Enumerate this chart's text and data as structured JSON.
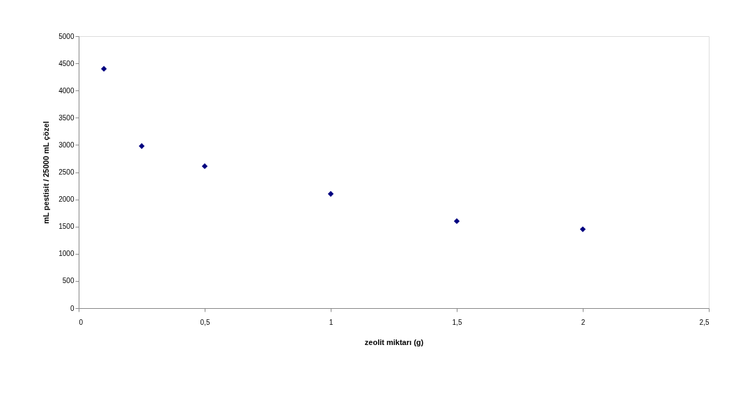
{
  "chart_data": {
    "type": "scatter",
    "xlabel": "zeolit miktarı (g)",
    "ylabel": "mL pestisit / 25000 mL çözel",
    "x": [
      0.1,
      0.25,
      0.5,
      1,
      1.5,
      2
    ],
    "series": [
      {
        "color": "#000080",
        "values": [
          4400,
          2980,
          2610,
          2100,
          1600,
          1450
        ]
      }
    ],
    "xlim": [
      0,
      2.5
    ],
    "xticks": [
      0,
      {
        "value": 0.5,
        "label": "0,5"
      },
      1,
      {
        "value": 1.5,
        "label": "1,5"
      },
      2,
      {
        "value": 2.5,
        "label": "2,5"
      }
    ],
    "ylim": [
      0,
      5000
    ],
    "yticks": [
      0,
      500,
      1000,
      1500,
      2000,
      2500,
      3000,
      3500,
      4000,
      4500,
      5000
    ],
    "marker": "diamond",
    "grid": false,
    "legend": false
  }
}
